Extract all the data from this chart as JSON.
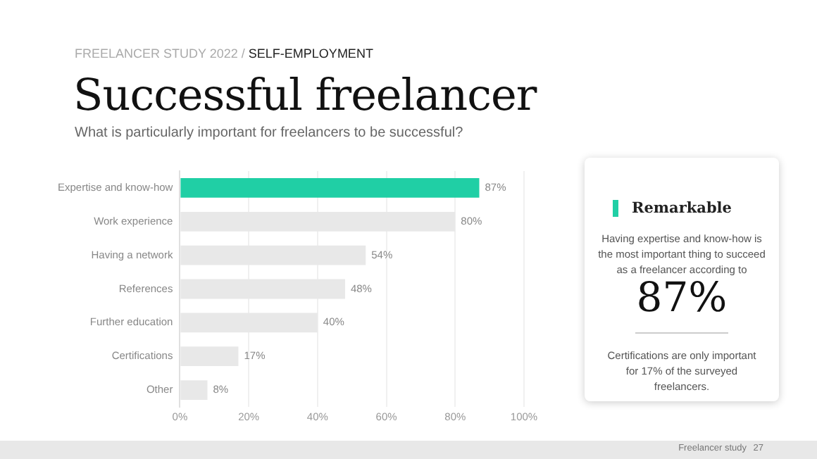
{
  "chart_data": {
    "type": "bar",
    "orientation": "horizontal",
    "title": "Successful freelancer",
    "subtitle": "What is particularly important for freelancers to be successful?",
    "categories": [
      "Expertise and know-how",
      "Work experience",
      "Having a network",
      "References",
      "Further education",
      "Certifications",
      "Other"
    ],
    "values": [
      87,
      80,
      54,
      48,
      40,
      17,
      8
    ],
    "colors": [
      "#20cfa5",
      "#e8e8e8",
      "#e8e8e8",
      "#e8e8e8",
      "#e8e8e8",
      "#e8e8e8",
      "#e8e8e8"
    ],
    "value_labels": [
      "87%",
      "80%",
      "54%",
      "48%",
      "40%",
      "17%",
      "8%"
    ],
    "xlim": [
      0,
      100
    ],
    "xticks": [
      {
        "value": 0,
        "label": "0%"
      },
      {
        "value": 20,
        "label": "20%"
      },
      {
        "value": 40,
        "label": "40%"
      },
      {
        "value": 60,
        "label": "60%"
      },
      {
        "value": 80,
        "label": "80%"
      },
      {
        "value": 100,
        "label": "100%"
      }
    ],
    "grid": "x",
    "legend": false,
    "annotations": [
      "FREELANCER STUDY 2022",
      "/",
      "SELF-EMPLOYMENT",
      "Remarkable",
      "Having expertise and know-how is the most important thing to succeed as a freelancer according to",
      "87%",
      "Certifications are only important for 17% of the surveyed freelancers.",
      "Freelancer study",
      "27"
    ]
  }
}
